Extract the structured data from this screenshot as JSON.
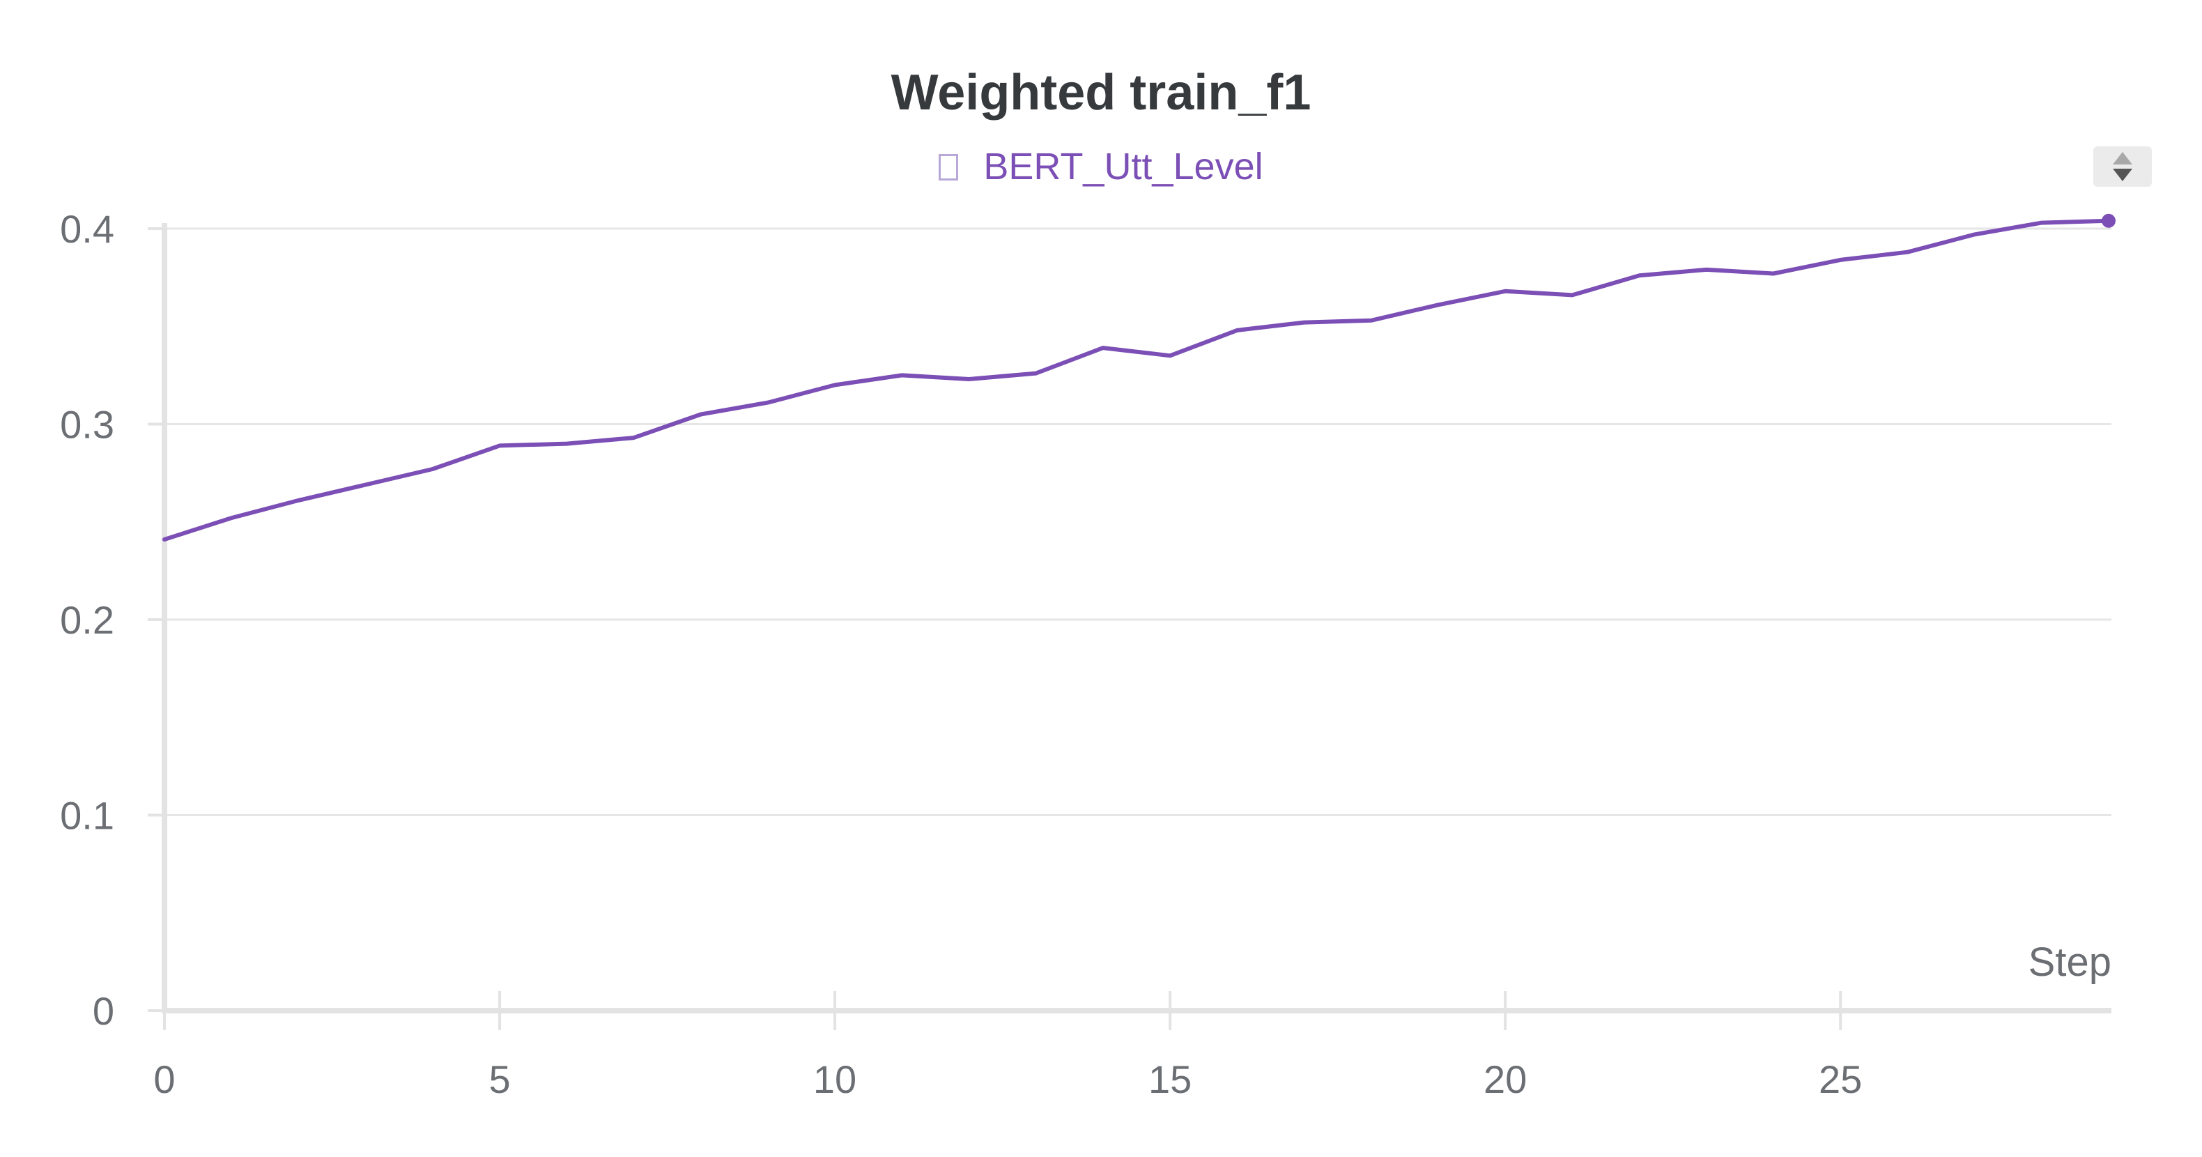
{
  "chart_data": {
    "type": "line",
    "title": "Weighted train_f1",
    "xlabel": "Step",
    "ylabel": "",
    "xlim": [
      0,
      29
    ],
    "ylim": [
      0,
      0.4
    ],
    "xticks": [
      "0",
      "5",
      "10",
      "15",
      "20",
      "25"
    ],
    "xtick_values": [
      0,
      5,
      10,
      15,
      20,
      25
    ],
    "yticks": [
      "0",
      "0.1",
      "0.2",
      "0.3",
      "0.4"
    ],
    "ytick_values": [
      0,
      0.1,
      0.2,
      0.3,
      0.4
    ],
    "grid": true,
    "legend_position": "top-center",
    "series": [
      {
        "name": "BERT_Utt_Level",
        "color": "#7b4fb5",
        "x": [
          0,
          1,
          2,
          3,
          4,
          5,
          6,
          7,
          8,
          9,
          10,
          11,
          12,
          13,
          14,
          15,
          16,
          17,
          18,
          19,
          20,
          21,
          22,
          23,
          24,
          25,
          26,
          27,
          28,
          29
        ],
        "values": [
          0.241,
          0.252,
          0.261,
          0.269,
          0.277,
          0.289,
          0.29,
          0.293,
          0.305,
          0.311,
          0.32,
          0.325,
          0.323,
          0.326,
          0.339,
          0.335,
          0.348,
          0.352,
          0.353,
          0.361,
          0.368,
          0.366,
          0.376,
          0.379,
          0.377,
          0.384,
          0.388,
          0.397,
          0.403,
          0.404
        ]
      }
    ]
  },
  "ui": {
    "sort_icon": "sort-arrows-icon"
  }
}
